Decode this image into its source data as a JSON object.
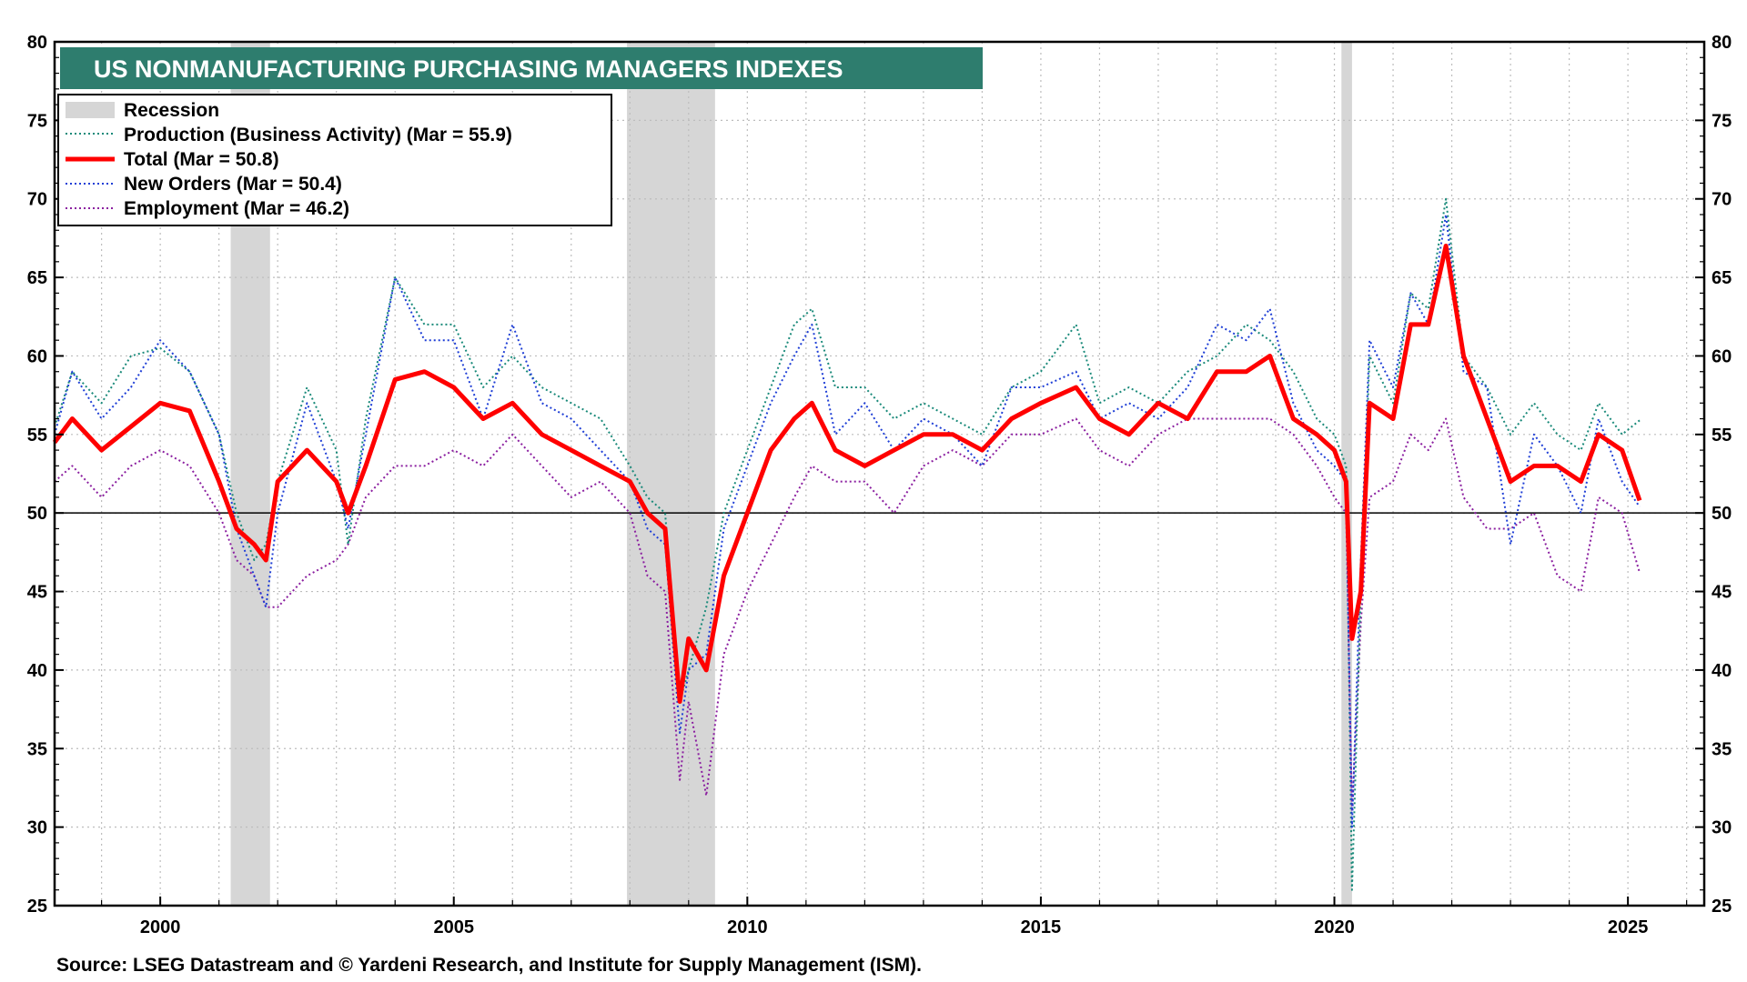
{
  "chart_data": {
    "type": "line",
    "title": "US NONMANUFACTURING PURCHASING MANAGERS INDEXES",
    "source": "Source: LSEG Datastream and © Yardeni Research, and Institute for Supply Management (ISM).",
    "xlim": [
      1998.2,
      2026.3
    ],
    "ylim": [
      25,
      80
    ],
    "y_ticks": [
      25,
      30,
      35,
      40,
      45,
      50,
      55,
      60,
      65,
      70,
      75,
      80
    ],
    "y_ticks_right": [
      25,
      30,
      35,
      40,
      45,
      50,
      55,
      60,
      65,
      70,
      75,
      80
    ],
    "x_ticks": [
      2000,
      2005,
      2010,
      2015,
      2020,
      2025
    ],
    "reference_line": 50,
    "grid": true,
    "recessions": [
      {
        "start": 2001.2,
        "end": 2001.87
      },
      {
        "start": 2007.95,
        "end": 2009.45
      },
      {
        "start": 2020.12,
        "end": 2020.3
      }
    ],
    "legend": {
      "recession": "Recession",
      "entries": [
        {
          "key": "production",
          "label": "Production  (Business Activity) (Mar = 55.9)"
        },
        {
          "key": "total",
          "label": "Total  (Mar = 50.8)"
        },
        {
          "key": "new_orders",
          "label": "New Orders (Mar = 50.4)"
        },
        {
          "key": "employment",
          "label": "Employment  (Mar = 46.2)"
        }
      ]
    },
    "series": [
      {
        "key": "production",
        "name": "Production (Business Activity)",
        "color": "#1a8a7a",
        "style": "dotted",
        "x": [
          1998.2,
          1998.5,
          1999.0,
          1999.5,
          2000.0,
          2000.5,
          2001.0,
          2001.3,
          2001.6,
          2001.8,
          2002.0,
          2002.5,
          2003.0,
          2003.2,
          2003.5,
          2004.0,
          2004.5,
          2005.0,
          2005.5,
          2006.0,
          2006.5,
          2007.0,
          2007.5,
          2008.0,
          2008.3,
          2008.6,
          2008.85,
          2009.0,
          2009.3,
          2009.6,
          2010.0,
          2010.4,
          2010.8,
          2011.1,
          2011.5,
          2012.0,
          2012.5,
          2013.0,
          2013.5,
          2014.0,
          2014.5,
          2015.0,
          2015.6,
          2016.0,
          2016.5,
          2017.0,
          2017.5,
          2018.0,
          2018.5,
          2018.9,
          2019.3,
          2019.7,
          2020.0,
          2020.2,
          2020.3,
          2020.45,
          2020.6,
          2021.0,
          2021.3,
          2021.6,
          2021.9,
          2022.2,
          2022.6,
          2023.0,
          2023.4,
          2023.8,
          2024.2,
          2024.5,
          2024.9,
          2025.2
        ],
        "y": [
          55.5,
          59,
          57,
          60,
          60.5,
          59,
          55,
          50,
          47,
          48,
          52,
          58,
          54,
          48,
          56,
          65,
          62,
          62,
          58,
          60,
          58,
          57,
          56,
          53,
          51,
          50,
          38,
          40,
          44,
          50,
          54,
          58,
          62,
          63,
          58,
          58,
          56,
          57,
          56,
          55,
          58,
          59,
          62,
          57,
          58,
          57,
          59,
          60,
          62,
          61,
          59,
          56,
          55,
          53,
          26,
          45,
          60,
          57,
          64,
          63,
          70,
          60,
          58,
          55,
          57,
          55,
          54,
          57,
          55,
          55.9
        ]
      },
      {
        "key": "total",
        "name": "Total",
        "color": "#ff0000",
        "style": "solid",
        "x": [
          1998.2,
          1998.5,
          1999.0,
          1999.5,
          2000.0,
          2000.5,
          2001.0,
          2001.3,
          2001.6,
          2001.8,
          2002.0,
          2002.5,
          2003.0,
          2003.2,
          2003.5,
          2004.0,
          2004.5,
          2005.0,
          2005.5,
          2006.0,
          2006.5,
          2007.0,
          2007.5,
          2008.0,
          2008.3,
          2008.6,
          2008.85,
          2009.0,
          2009.3,
          2009.6,
          2010.0,
          2010.4,
          2010.8,
          2011.1,
          2011.5,
          2012.0,
          2012.5,
          2013.0,
          2013.5,
          2014.0,
          2014.5,
          2015.0,
          2015.6,
          2016.0,
          2016.5,
          2017.0,
          2017.5,
          2018.0,
          2018.5,
          2018.9,
          2019.3,
          2019.7,
          2020.0,
          2020.2,
          2020.3,
          2020.45,
          2020.6,
          2021.0,
          2021.3,
          2021.6,
          2021.9,
          2022.2,
          2022.6,
          2023.0,
          2023.4,
          2023.8,
          2024.2,
          2024.5,
          2024.9,
          2025.2
        ],
        "y": [
          54.5,
          56,
          54,
          55.5,
          57,
          56.5,
          52,
          49,
          48,
          47,
          52,
          54,
          52,
          50,
          53,
          58.5,
          59,
          58,
          56,
          57,
          55,
          54,
          53,
          52,
          50,
          49,
          38,
          42,
          40,
          46,
          50,
          54,
          56,
          57,
          54,
          53,
          54,
          55,
          55,
          54,
          56,
          57,
          58,
          56,
          55,
          57,
          56,
          59,
          59,
          60,
          56,
          55,
          54,
          52,
          42,
          45,
          57,
          56,
          62,
          62,
          67,
          60,
          56,
          52,
          53,
          53,
          52,
          55,
          54,
          50.8
        ]
      },
      {
        "key": "new_orders",
        "name": "New Orders",
        "color": "#1f3fd6",
        "style": "dotted",
        "x": [
          1998.2,
          1998.5,
          1999.0,
          1999.5,
          2000.0,
          2000.5,
          2001.0,
          2001.3,
          2001.6,
          2001.8,
          2002.0,
          2002.5,
          2003.0,
          2003.2,
          2003.5,
          2004.0,
          2004.5,
          2005.0,
          2005.5,
          2006.0,
          2006.5,
          2007.0,
          2007.5,
          2008.0,
          2008.3,
          2008.6,
          2008.85,
          2009.0,
          2009.3,
          2009.6,
          2010.0,
          2010.4,
          2010.8,
          2011.1,
          2011.5,
          2012.0,
          2012.5,
          2013.0,
          2013.5,
          2014.0,
          2014.5,
          2015.0,
          2015.6,
          2016.0,
          2016.5,
          2017.0,
          2017.5,
          2018.0,
          2018.5,
          2018.9,
          2019.3,
          2019.7,
          2020.0,
          2020.2,
          2020.3,
          2020.45,
          2020.6,
          2021.0,
          2021.3,
          2021.6,
          2021.9,
          2022.2,
          2022.6,
          2023.0,
          2023.4,
          2023.8,
          2024.2,
          2024.5,
          2024.9,
          2025.2
        ],
        "y": [
          55,
          59,
          56,
          58,
          61,
          59,
          55,
          49,
          46,
          44,
          50,
          57,
          52,
          49,
          55,
          65,
          61,
          61,
          56,
          62,
          57,
          56,
          54,
          52,
          49,
          48,
          36,
          40,
          41,
          49,
          53,
          57,
          60,
          62,
          55,
          57,
          54,
          56,
          55,
          53,
          58,
          58,
          59,
          56,
          57,
          56,
          58,
          62,
          61,
          63,
          57,
          54,
          53,
          52,
          30,
          47,
          61,
          58,
          64,
          62,
          69,
          59,
          58,
          48,
          55,
          53,
          50,
          56,
          52,
          50.4
        ]
      },
      {
        "key": "employment",
        "name": "Employment",
        "color": "#8b1fa0",
        "style": "dotted",
        "x": [
          1998.2,
          1998.5,
          1999.0,
          1999.5,
          2000.0,
          2000.5,
          2001.0,
          2001.3,
          2001.6,
          2001.8,
          2002.0,
          2002.5,
          2003.0,
          2003.2,
          2003.5,
          2004.0,
          2004.5,
          2005.0,
          2005.5,
          2006.0,
          2006.5,
          2007.0,
          2007.5,
          2008.0,
          2008.3,
          2008.6,
          2008.85,
          2009.0,
          2009.3,
          2009.6,
          2010.0,
          2010.4,
          2010.8,
          2011.1,
          2011.5,
          2012.0,
          2012.5,
          2013.0,
          2013.5,
          2014.0,
          2014.5,
          2015.0,
          2015.6,
          2016.0,
          2016.5,
          2017.0,
          2017.5,
          2018.0,
          2018.5,
          2018.9,
          2019.3,
          2019.7,
          2020.0,
          2020.2,
          2020.3,
          2020.45,
          2020.6,
          2021.0,
          2021.3,
          2021.6,
          2021.9,
          2022.2,
          2022.6,
          2023.0,
          2023.4,
          2023.8,
          2024.2,
          2024.5,
          2024.9,
          2025.2
        ],
        "y": [
          52,
          53,
          51,
          53,
          54,
          53,
          50,
          47,
          46,
          44,
          44,
          46,
          47,
          48,
          51,
          53,
          53,
          54,
          53,
          55,
          53,
          51,
          52,
          50,
          46,
          45,
          33,
          38,
          32,
          41,
          45,
          48,
          51,
          53,
          52,
          52,
          50,
          53,
          54,
          53,
          55,
          55,
          56,
          54,
          53,
          55,
          56,
          56,
          56,
          56,
          55,
          53,
          51,
          50,
          31,
          43,
          51,
          52,
          55,
          54,
          56,
          51,
          49,
          49,
          50,
          46,
          45,
          51,
          50,
          46.2
        ]
      }
    ]
  }
}
